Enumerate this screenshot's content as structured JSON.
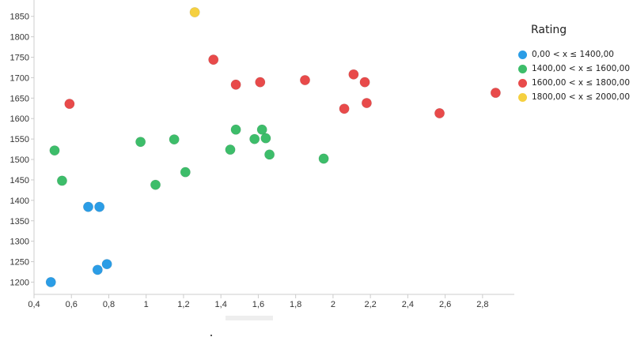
{
  "chart_data": {
    "type": "scatter",
    "title": "",
    "xlabel": "",
    "ylabel": "",
    "xlim": [
      0.4,
      2.97
    ],
    "ylim": [
      1170,
      1890
    ],
    "x_ticks": [
      0.4,
      0.6,
      0.8,
      1,
      1.2,
      1.4,
      1.6,
      1.8,
      2,
      2.2,
      2.4,
      2.6,
      2.8
    ],
    "x_tick_labels": [
      "0,4",
      "0,6",
      "0,8",
      "1",
      "1,2",
      "1,4",
      "1,6",
      "1,8",
      "2",
      "2,2",
      "2,4",
      "2,6",
      "2,8"
    ],
    "y_ticks": [
      1200,
      1250,
      1300,
      1350,
      1400,
      1450,
      1500,
      1550,
      1600,
      1650,
      1700,
      1750,
      1800,
      1850
    ],
    "y_tick_labels": [
      "1200",
      "1250",
      "1300",
      "1350",
      "1400",
      "1450",
      "1500",
      "1550",
      "1600",
      "1650",
      "1700",
      "1750",
      "1800",
      "1850"
    ],
    "legend": {
      "title": "Rating",
      "placement": "right",
      "entries": [
        {
          "label": "0,00 < x ≤ 1400,00",
          "color": "#2b9de6"
        },
        {
          "label": "1400,00 < x ≤ 1600,00",
          "color": "#3dbd6a"
        },
        {
          "label": "1600,00 < x ≤ 1800,00",
          "color": "#e84a4a"
        },
        {
          "label": "1800,00 < x ≤ 2000,00",
          "color": "#f5d040"
        }
      ]
    },
    "series": [
      {
        "group": 0,
        "points": [
          [
            0.49,
            1200
          ],
          [
            0.69,
            1384
          ],
          [
            0.74,
            1230
          ],
          [
            0.75,
            1384
          ],
          [
            0.79,
            1244
          ]
        ]
      },
      {
        "group": 1,
        "points": [
          [
            0.51,
            1522
          ],
          [
            0.55,
            1448
          ],
          [
            0.97,
            1543
          ],
          [
            1.05,
            1438
          ],
          [
            1.15,
            1549
          ],
          [
            1.21,
            1469
          ],
          [
            1.45,
            1524
          ],
          [
            1.48,
            1573
          ],
          [
            1.58,
            1550
          ],
          [
            1.62,
            1573
          ],
          [
            1.64,
            1552
          ],
          [
            1.66,
            1512
          ],
          [
            1.95,
            1502
          ]
        ]
      },
      {
        "group": 2,
        "points": [
          [
            0.59,
            1636
          ],
          [
            1.36,
            1744
          ],
          [
            1.48,
            1683
          ],
          [
            1.61,
            1689
          ],
          [
            1.85,
            1694
          ],
          [
            2.06,
            1624
          ],
          [
            2.11,
            1708
          ],
          [
            2.17,
            1689
          ],
          [
            2.18,
            1638
          ],
          [
            2.57,
            1613
          ],
          [
            2.87,
            1663
          ]
        ]
      },
      {
        "group": 3,
        "points": [
          [
            1.26,
            1860
          ]
        ]
      }
    ]
  }
}
